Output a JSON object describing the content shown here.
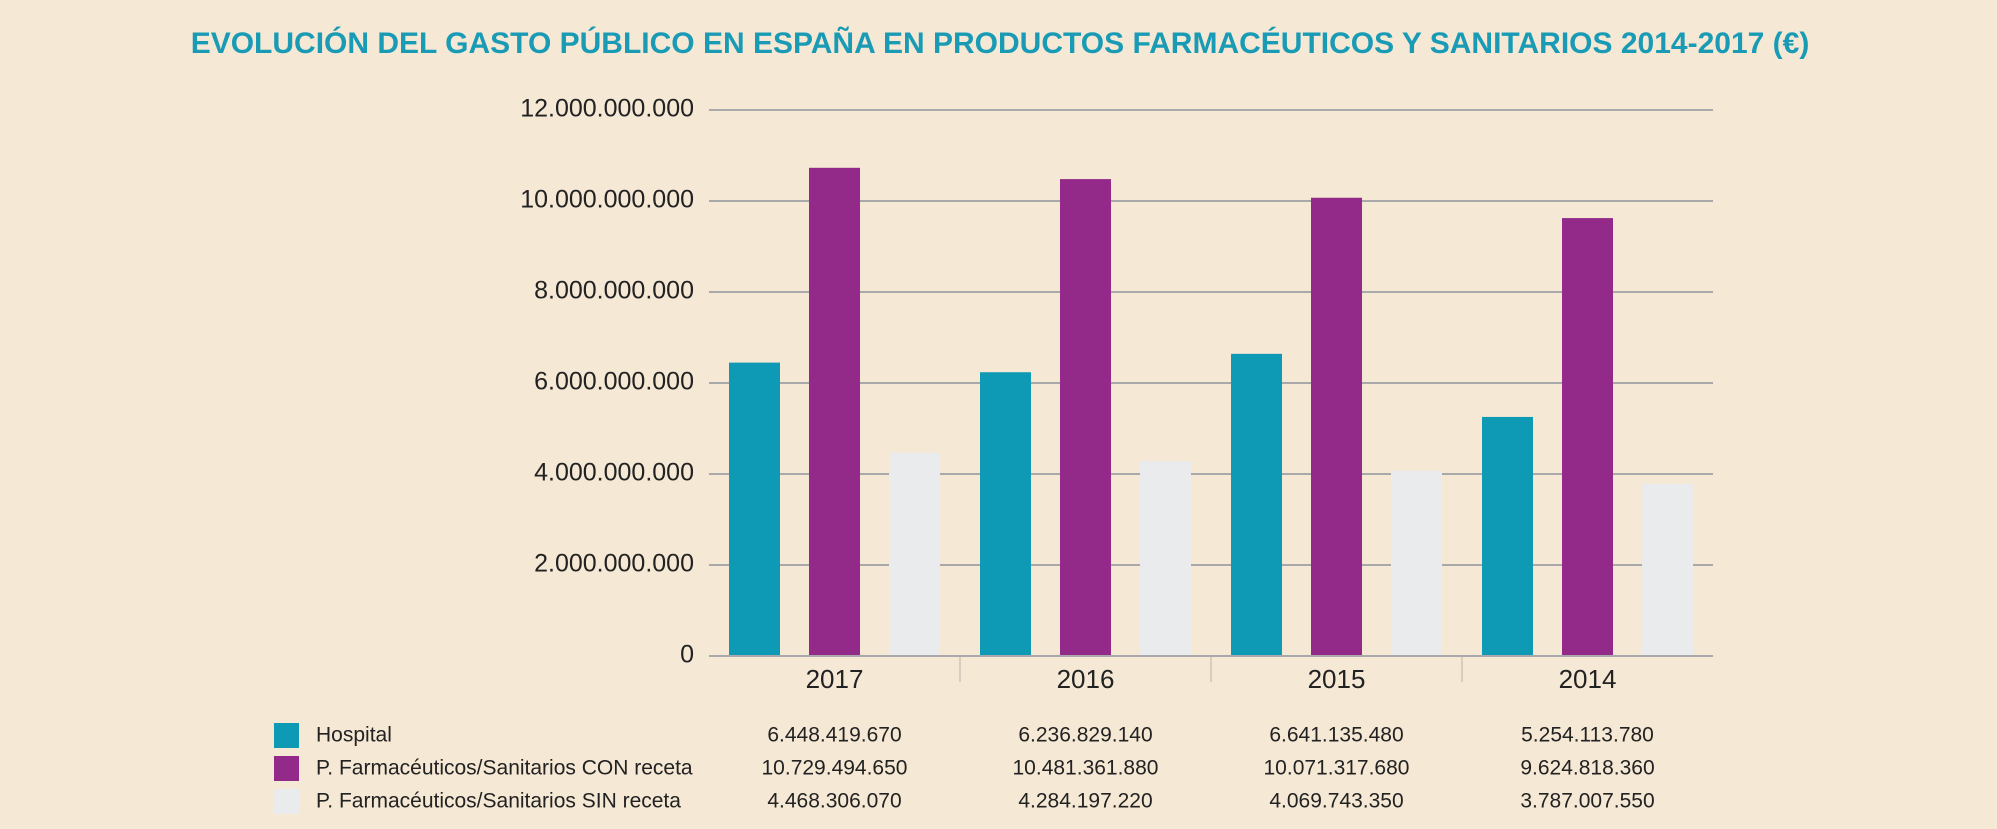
{
  "chart_data": {
    "type": "bar",
    "title": "EVOLUCIÓN DEL GASTO PÚBLICO EN ESPAÑA EN PRODUCTOS FARMACÉUTICOS Y SANITARIOS 2014-2017 (€)",
    "categories": [
      "2017",
      "2016",
      "2015",
      "2014"
    ],
    "series": [
      {
        "name": "Hospital",
        "color": "#0e9ab5",
        "values": [
          6448419670,
          6236829140,
          6641135480,
          5254113780
        ],
        "value_labels": [
          "6.448.419.670",
          "6.236.829.140",
          "6.641.135.480",
          "5.254.113.780"
        ]
      },
      {
        "name": "P. Farmacéuticos/Sanitarios CON receta",
        "color": "#932a8a",
        "values": [
          10729494650,
          10481361880,
          10071317680,
          9624818360
        ],
        "value_labels": [
          "10.729.494.650",
          "10.481.361.880",
          "10.071.317.680",
          "9.624.818.360"
        ]
      },
      {
        "name": "P. Farmacéuticos/Sanitarios SIN receta",
        "color": "#e9ebec",
        "values": [
          4468306070,
          4284197220,
          4069743350,
          3787007550
        ],
        "value_labels": [
          "4.468.306.070",
          "4.284.197.220",
          "4.069.743.350",
          "3.787.007.550"
        ]
      }
    ],
    "ylim": [
      0,
      12000000000
    ],
    "yticks": [
      0,
      {
        "value": 2000000000,
        "label": "2.000.000.000"
      },
      {
        "value": 4000000000,
        "label": "4.000.000.000"
      },
      {
        "value": 6000000000,
        "label": "6.000.000.000"
      },
      {
        "value": 8000000000,
        "label": "8.000.000.000"
      },
      {
        "value": 10000000000,
        "label": "10.000.000.000"
      },
      {
        "value": 12000000000,
        "label": "12.000.000.000"
      }
    ],
    "grid": true
  }
}
